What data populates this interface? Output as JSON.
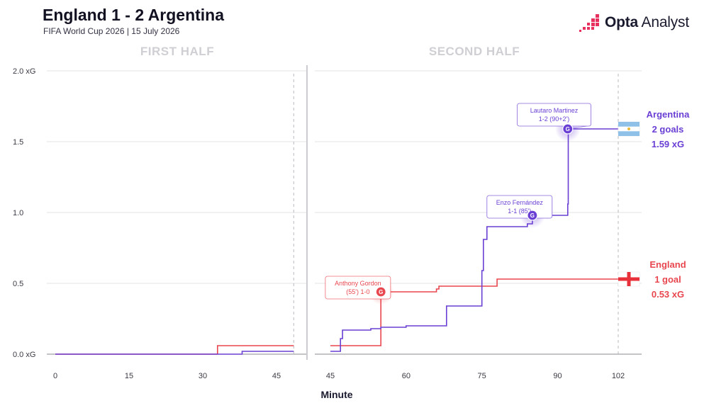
{
  "header": {
    "title": "England 1 - 2 Argentina",
    "subtitle": "FIFA World Cup 2026 | 15 July 2026",
    "brand_bold": "Opta",
    "brand_light": "Analyst"
  },
  "chart_data": {
    "type": "line",
    "step": true,
    "title": "England 1 - 2 Argentina",
    "subtitle": "FIFA World Cup 2026 | 15 July 2026",
    "xlabel": "Minute",
    "ylabel": "",
    "ylim": [
      0,
      2.0
    ],
    "y_ticks": [
      "0.0 xG",
      "0.5",
      "1.0",
      "1.5",
      "2.0 xG"
    ],
    "y_tick_values": [
      0,
      0.5,
      1.0,
      1.5,
      2.0
    ],
    "grid": true,
    "panels": [
      {
        "label": "FIRST HALF",
        "x_range": [
          0,
          47
        ],
        "x_ticks": [
          0,
          15,
          30,
          45
        ],
        "period_end": 48.5
      },
      {
        "label": "SECOND HALF",
        "x_range": [
          44,
          104
        ],
        "x_ticks": [
          45,
          60,
          75,
          90,
          102
        ],
        "period_end": 102
      }
    ],
    "series": [
      {
        "team": "England",
        "color": "#e8474f",
        "flag": "england",
        "first_half": [
          [
            0,
            0
          ],
          [
            33,
            0
          ],
          [
            33,
            0.06
          ],
          [
            48.5,
            0.06
          ]
        ],
        "second_half": [
          [
            45,
            0.06
          ],
          [
            55,
            0.06
          ],
          [
            55,
            0.44
          ],
          [
            66,
            0.44
          ],
          [
            66,
            0.46
          ],
          [
            66.5,
            0.46
          ],
          [
            66.5,
            0.48
          ],
          [
            78,
            0.48
          ],
          [
            78,
            0.53
          ],
          [
            102,
            0.53
          ]
        ],
        "label_lines": [
          "England",
          "1 goal",
          "0.53 xG"
        ]
      },
      {
        "team": "Argentina",
        "color": "#6a3fd4",
        "flag": "argentina",
        "first_half": [
          [
            0,
            0
          ],
          [
            38,
            0
          ],
          [
            38,
            0.02
          ],
          [
            48.5,
            0.02
          ]
        ],
        "second_half": [
          [
            45,
            0.02
          ],
          [
            47,
            0.02
          ],
          [
            47,
            0.11
          ],
          [
            47.4,
            0.11
          ],
          [
            47.4,
            0.17
          ],
          [
            53,
            0.17
          ],
          [
            53,
            0.18
          ],
          [
            55,
            0.18
          ],
          [
            55,
            0.19
          ],
          [
            60,
            0.19
          ],
          [
            60,
            0.2
          ],
          [
            68,
            0.2
          ],
          [
            68,
            0.34
          ],
          [
            75,
            0.34
          ],
          [
            75,
            0.59
          ],
          [
            75.3,
            0.59
          ],
          [
            75.3,
            0.81
          ],
          [
            76,
            0.81
          ],
          [
            76,
            0.9
          ],
          [
            84,
            0.9
          ],
          [
            84,
            0.92
          ],
          [
            85,
            0.92
          ],
          [
            85,
            0.98
          ],
          [
            92,
            0.98
          ],
          [
            92,
            1.06
          ],
          [
            92.1,
            1.06
          ],
          [
            92.1,
            1.59
          ],
          [
            102,
            1.59
          ]
        ],
        "label_lines": [
          "Argentina",
          "2 goals",
          "1.59 xG"
        ]
      }
    ],
    "annotations": [
      {
        "team": "England",
        "minute": 55,
        "xg": 0.44,
        "lines": [
          "Anthony Gordon",
          "(55') 1-0"
        ],
        "box_x": 44,
        "box_y": 0.55
      },
      {
        "team": "Argentina",
        "minute": 85,
        "xg": 0.98,
        "lines": [
          "Enzo Fernández",
          "1-1 (85')"
        ],
        "box_x": 76,
        "box_y": 1.12
      },
      {
        "team": "Argentina",
        "minute": 92,
        "xg": 1.59,
        "lines": [
          "Lautaro Martinez",
          "1-2 (90+2')"
        ],
        "box_x": 82,
        "box_y": 1.77
      }
    ],
    "goal_marker_text": "G"
  }
}
